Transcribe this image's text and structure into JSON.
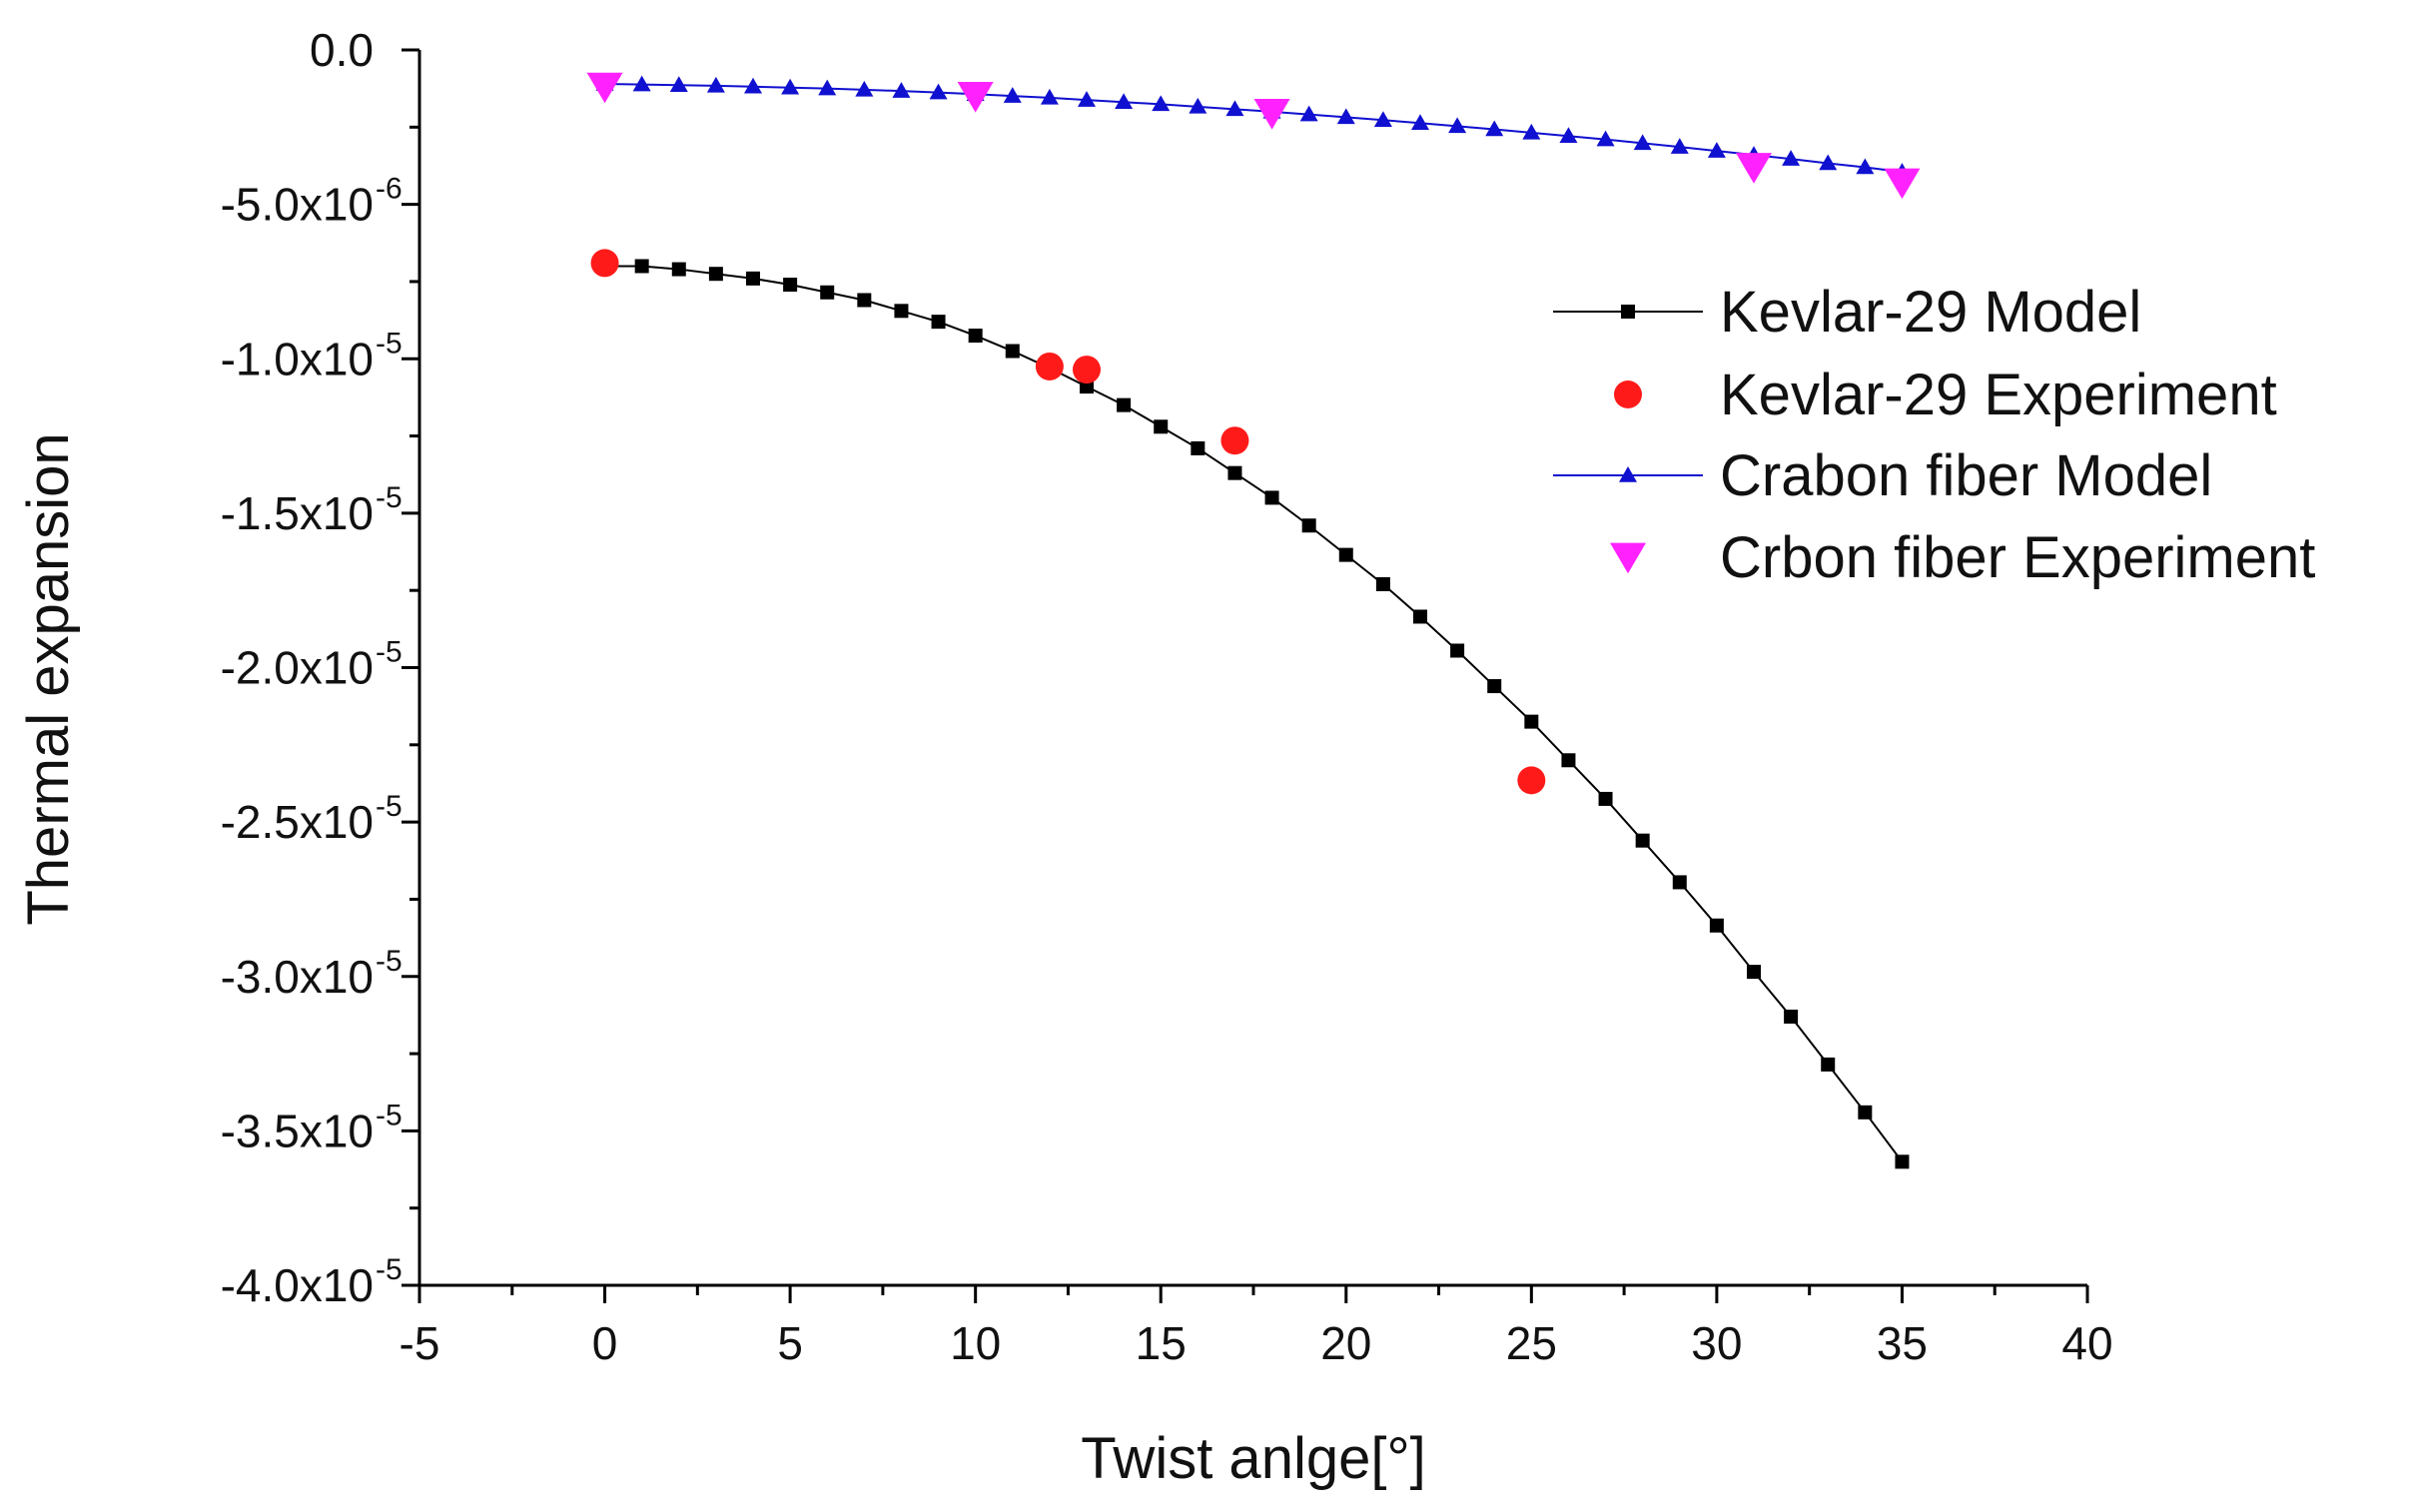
{
  "chart_data": {
    "type": "scatter",
    "title": "",
    "xlabel": "Twist anlge[°]",
    "ylabel": "Thermal expansion",
    "xlim": [
      -5,
      40
    ],
    "ylim": [
      -4e-05,
      0
    ],
    "x_ticks": [
      -5,
      0,
      5,
      10,
      15,
      20,
      25,
      30,
      35,
      40
    ],
    "x_tick_labels": [
      "-5",
      "0",
      "5",
      "10",
      "15",
      "20",
      "25",
      "30",
      "35",
      "40"
    ],
    "y_ticks": [
      0,
      -5e-06,
      -1e-05,
      -1.5e-05,
      -2e-05,
      -2.5e-05,
      -3e-05,
      -3.5e-05,
      -4e-05
    ],
    "y_tick_labels": [
      {
        "mantissa": "0.0",
        "exponent": ""
      },
      {
        "mantissa": "-5.0x10",
        "exponent": "-6"
      },
      {
        "mantissa": "-1.0x10",
        "exponent": "-5"
      },
      {
        "mantissa": "-1.5x10",
        "exponent": "-5"
      },
      {
        "mantissa": "-2.0x10",
        "exponent": "-5"
      },
      {
        "mantissa": "-2.5x10",
        "exponent": "-5"
      },
      {
        "mantissa": "-3.0x10",
        "exponent": "-5"
      },
      {
        "mantissa": "-3.5x10",
        "exponent": "-5"
      },
      {
        "mantissa": "-4.0x10",
        "exponent": "-5"
      }
    ],
    "legend_position": "right",
    "grid": false,
    "series": [
      {
        "name": "Kevlar-29 Model",
        "kind": "line-marker",
        "marker": "square",
        "color": "#000000",
        "x": [
          0,
          1,
          2,
          3,
          4,
          5,
          6,
          7,
          8,
          9,
          10,
          11,
          12,
          13,
          14,
          15,
          16,
          17,
          18,
          19,
          20,
          21,
          22,
          23,
          24,
          25,
          26,
          27,
          28,
          29,
          30,
          31,
          32,
          33,
          34,
          35
        ],
        "values": [
          -7e-06,
          -7e-06,
          -7.1e-06,
          -7.25e-06,
          -7.4e-06,
          -7.6e-06,
          -7.85e-06,
          -8.1e-06,
          -8.45e-06,
          -8.8e-06,
          -9.25e-06,
          -9.75e-06,
          -1.03e-05,
          -1.09e-05,
          -1.15e-05,
          -1.22e-05,
          -1.29e-05,
          -1.37e-05,
          -1.45e-05,
          -1.54e-05,
          -1.635e-05,
          -1.73e-05,
          -1.835e-05,
          -1.945e-05,
          -2.06e-05,
          -2.175e-05,
          -2.3e-05,
          -2.425e-05,
          -2.56e-05,
          -2.695e-05,
          -2.835e-05,
          -2.985e-05,
          -3.13e-05,
          -3.285e-05,
          -3.44e-05,
          -3.6e-05
        ]
      },
      {
        "name": "Kevlar-29 Experiment",
        "kind": "marker",
        "marker": "circle",
        "color": "#ff1a1a",
        "x": [
          0,
          12,
          13,
          17,
          25
        ],
        "values": [
          -6.9e-06,
          -1.025e-05,
          -1.035e-05,
          -1.265e-05,
          -2.365e-05
        ]
      },
      {
        "name": "Crabon fiber Model",
        "kind": "line-marker",
        "marker": "triangle-up",
        "color": "#1010d0",
        "x": [
          0,
          1,
          2,
          3,
          4,
          5,
          6,
          7,
          8,
          9,
          10,
          11,
          12,
          13,
          14,
          15,
          16,
          17,
          18,
          19,
          20,
          21,
          22,
          23,
          24,
          25,
          26,
          27,
          28,
          29,
          30,
          31,
          32,
          33,
          34,
          35
        ],
        "values": [
          -1.1e-06,
          -1.12e-06,
          -1.14e-06,
          -1.16e-06,
          -1.19e-06,
          -1.22e-06,
          -1.25e-06,
          -1.29e-06,
          -1.33e-06,
          -1.38e-06,
          -1.43e-06,
          -1.49e-06,
          -1.55e-06,
          -1.62e-06,
          -1.69e-06,
          -1.76e-06,
          -1.84e-06,
          -1.92e-06,
          -2e-06,
          -2.09e-06,
          -2.18e-06,
          -2.27e-06,
          -2.37e-06,
          -2.47e-06,
          -2.57e-06,
          -2.68e-06,
          -2.79e-06,
          -2.9e-06,
          -3.02e-06,
          -3.14e-06,
          -3.27e-06,
          -3.4e-06,
          -3.53e-06,
          -3.67e-06,
          -3.8e-06,
          -3.95e-06
        ]
      },
      {
        "name": "Crbon fiber Experiment",
        "kind": "marker",
        "marker": "triangle-down",
        "color": "#ff22ff",
        "x": [
          0,
          10,
          18,
          31,
          35
        ],
        "values": [
          -1.2e-06,
          -1.5e-06,
          -2.05e-06,
          -3.8e-06,
          -4.3e-06
        ]
      }
    ]
  }
}
